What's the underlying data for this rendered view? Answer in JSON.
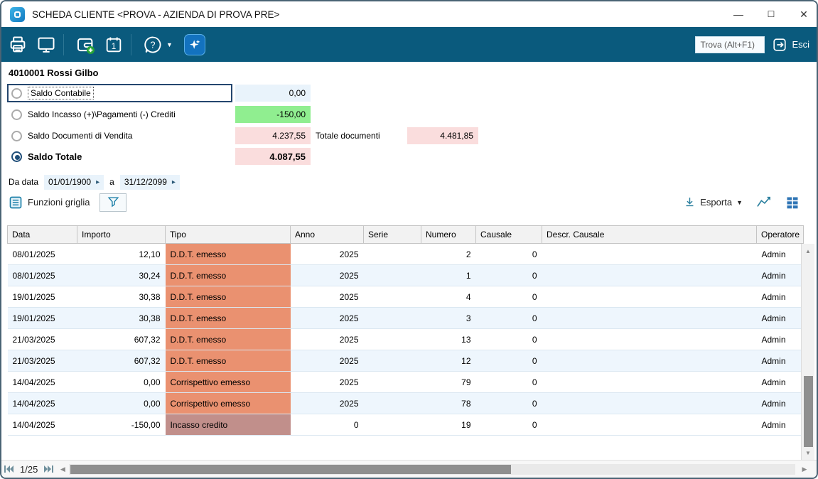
{
  "window": {
    "title": "SCHEDA CLIENTE <PROVA - AZIENDA DI PROVA PRE>",
    "controls": {
      "minimize": "—",
      "maximize": "☐",
      "close": "✕"
    }
  },
  "toolbar": {
    "icons": [
      "print-icon",
      "monitor-icon",
      "wallet-add-icon",
      "calendar-icon",
      "help-icon",
      "ai-assistant-icon"
    ],
    "find_value": "Trova (Alt+F1)",
    "exit_label": "Esci"
  },
  "customer": {
    "heading": "4010001 Rossi Gilbo"
  },
  "balances": [
    {
      "label": "Saldo Contabile",
      "value": "0,00"
    },
    {
      "label": "Saldo Incasso (+)\\Pagamenti (-) Crediti",
      "value": "-150,00"
    },
    {
      "label": "Saldo Documenti di Vendita",
      "value": "4.237,55",
      "extra_label": "Totale documenti",
      "extra_value": "4.481,85"
    },
    {
      "label": "Saldo Totale",
      "value": "4.087,55"
    }
  ],
  "date_filter": {
    "from_label": "Da data",
    "from_value": "01/01/1900",
    "between_label": "a",
    "to_value": "31/12/2099",
    "spinner_icon": "▸"
  },
  "grid_toolbar": {
    "functions_label": "Funzioni griglia",
    "export_label": "Esporta"
  },
  "table": {
    "columns": [
      "Data",
      "Importo",
      "Tipo",
      "Anno",
      "Serie",
      "Numero",
      "Causale",
      "Descr. Causale",
      "Operatore"
    ],
    "rows": [
      {
        "data": "08/01/2025",
        "importo": "12,10",
        "tipo": "D.D.T. emesso",
        "tipo_style": "salmon",
        "anno": "2025",
        "serie": "",
        "numero": "2",
        "causale": "0",
        "descr_causale": "",
        "operatore": "Admin"
      },
      {
        "data": "08/01/2025",
        "importo": "30,24",
        "tipo": "D.D.T. emesso",
        "tipo_style": "salmon",
        "anno": "2025",
        "serie": "",
        "numero": "1",
        "causale": "0",
        "descr_causale": "",
        "operatore": "Admin"
      },
      {
        "data": "19/01/2025",
        "importo": "30,38",
        "tipo": "D.D.T. emesso",
        "tipo_style": "salmon",
        "anno": "2025",
        "serie": "",
        "numero": "4",
        "causale": "0",
        "descr_causale": "",
        "operatore": "Admin"
      },
      {
        "data": "19/01/2025",
        "importo": "30,38",
        "tipo": "D.D.T. emesso",
        "tipo_style": "salmon",
        "anno": "2025",
        "serie": "",
        "numero": "3",
        "causale": "0",
        "descr_causale": "",
        "operatore": "Admin"
      },
      {
        "data": "21/03/2025",
        "importo": "607,32",
        "tipo": "D.D.T. emesso",
        "tipo_style": "salmon",
        "anno": "2025",
        "serie": "",
        "numero": "13",
        "causale": "0",
        "descr_causale": "",
        "operatore": "Admin"
      },
      {
        "data": "21/03/2025",
        "importo": "607,32",
        "tipo": "D.D.T. emesso",
        "tipo_style": "salmon",
        "anno": "2025",
        "serie": "",
        "numero": "12",
        "causale": "0",
        "descr_causale": "",
        "operatore": "Admin"
      },
      {
        "data": "14/04/2025",
        "importo": "0,00",
        "tipo": "Corrispettivo emesso",
        "tipo_style": "salmon",
        "anno": "2025",
        "serie": "",
        "numero": "79",
        "causale": "0",
        "descr_causale": "",
        "operatore": "Admin"
      },
      {
        "data": "14/04/2025",
        "importo": "0,00",
        "tipo": "Corrispettivo emesso",
        "tipo_style": "salmon",
        "anno": "2025",
        "serie": "",
        "numero": "78",
        "causale": "0",
        "descr_causale": "",
        "operatore": "Admin"
      },
      {
        "data": "14/04/2025",
        "importo": "-150,00",
        "tipo": "Incasso credito",
        "tipo_style": "mauve",
        "anno": "0",
        "serie": "",
        "numero": "19",
        "causale": "0",
        "descr_causale": "",
        "operatore": "Admin"
      }
    ]
  },
  "pager": {
    "position": "1/25"
  },
  "colors": {
    "toolbar_bg": "#0a5a7d",
    "value_blue": "#e9f3fb",
    "value_green": "#90ee90",
    "value_pink": "#fadddd",
    "tipo_salmon": "#ea9170",
    "tipo_mauve": "#c18f8b",
    "row_alt": "#eef6fd"
  }
}
